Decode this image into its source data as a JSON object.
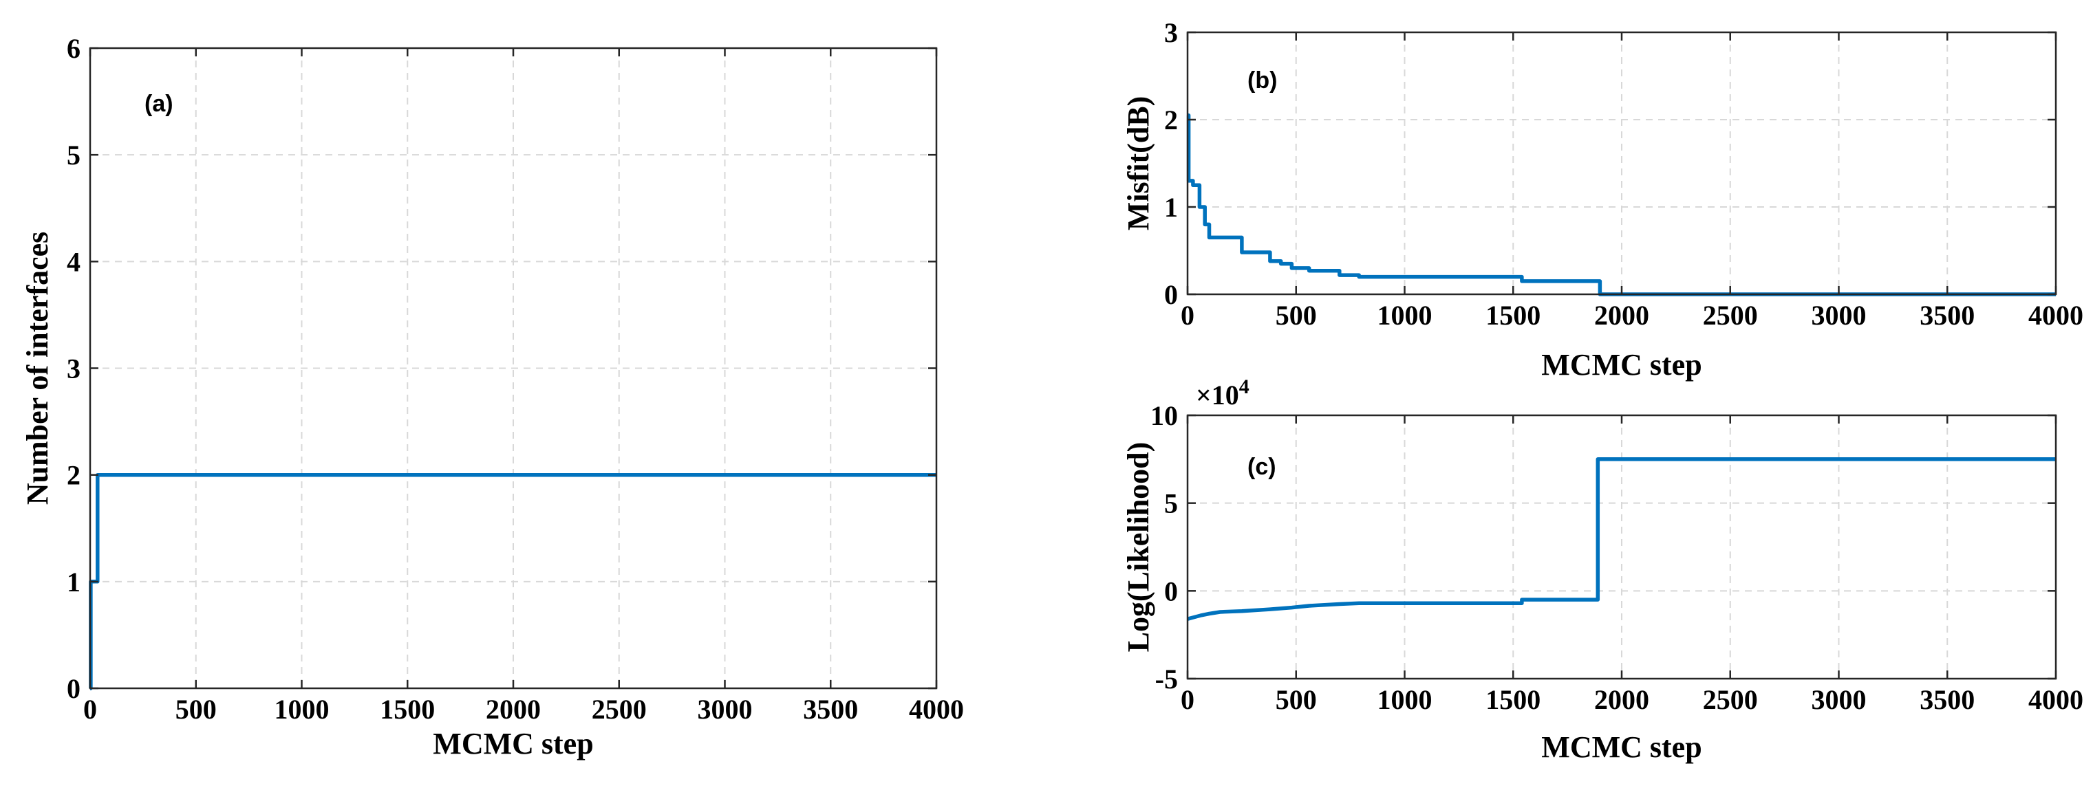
{
  "chart_data": [
    {
      "panel_label": "(a)",
      "type": "line",
      "xlabel": "MCMC step",
      "ylabel": "Number of interfaces",
      "xlim": [
        0,
        4000
      ],
      "ylim": [
        0,
        6
      ],
      "xticks": [
        0,
        500,
        1000,
        1500,
        2000,
        2500,
        3000,
        3500,
        4000
      ],
      "yticks": [
        0,
        1,
        2,
        3,
        4,
        5,
        6
      ],
      "exponent": "",
      "grid": true,
      "series": [
        {
          "name": "Number of interfaces",
          "color": "#0072BD",
          "x": [
            0,
            3,
            3,
            35,
            35,
            4000
          ],
          "y": [
            0,
            0,
            1,
            1,
            2,
            2
          ]
        }
      ]
    },
    {
      "panel_label": "(b)",
      "type": "line",
      "xlabel": "MCMC step",
      "ylabel": "Misfit(dB)",
      "xlim": [
        0,
        4000
      ],
      "ylim": [
        0,
        3
      ],
      "xticks": [
        0,
        500,
        1000,
        1500,
        2000,
        2500,
        3000,
        3500,
        4000
      ],
      "yticks": [
        0,
        1,
        2,
        3
      ],
      "exponent": "",
      "grid": true,
      "series": [
        {
          "name": "Misfit",
          "color": "#0072BD",
          "x": [
            0,
            5,
            5,
            25,
            25,
            55,
            55,
            80,
            80,
            100,
            100,
            150,
            150,
            250,
            250,
            380,
            380,
            430,
            430,
            480,
            480,
            560,
            560,
            700,
            700,
            790,
            790,
            1540,
            1540,
            1900,
            1900,
            4000
          ],
          "y": [
            2.05,
            2.05,
            1.3,
            1.3,
            1.25,
            1.25,
            1.0,
            1.0,
            0.8,
            0.8,
            0.65,
            0.65,
            0.65,
            0.65,
            0.48,
            0.48,
            0.38,
            0.38,
            0.35,
            0.35,
            0.3,
            0.3,
            0.27,
            0.27,
            0.22,
            0.22,
            0.2,
            0.2,
            0.15,
            0.15,
            0.0,
            0.0
          ]
        }
      ]
    },
    {
      "panel_label": "(c)",
      "type": "line",
      "xlabel": "MCMC step",
      "ylabel": "Log(Likelihood)",
      "xlim": [
        0,
        4000
      ],
      "ylim": [
        -5,
        10
      ],
      "xticks": [
        0,
        500,
        1000,
        1500,
        2000,
        2500,
        3000,
        3500,
        4000
      ],
      "yticks": [
        -5,
        0,
        5,
        10
      ],
      "exponent": "×10^4",
      "grid": true,
      "series": [
        {
          "name": "Log(Likelihood)",
          "color": "#0072BD",
          "x": [
            0,
            30,
            60,
            100,
            150,
            250,
            380,
            480,
            560,
            700,
            790,
            1000,
            1200,
            1400,
            1540,
            1540,
            1890,
            1890,
            4000
          ],
          "y": [
            -1.6,
            -1.5,
            -1.4,
            -1.3,
            -1.2,
            -1.15,
            -1.05,
            -0.95,
            -0.85,
            -0.75,
            -0.7,
            -0.7,
            -0.7,
            -0.7,
            -0.7,
            -0.5,
            -0.5,
            7.5,
            7.5
          ]
        }
      ]
    }
  ]
}
